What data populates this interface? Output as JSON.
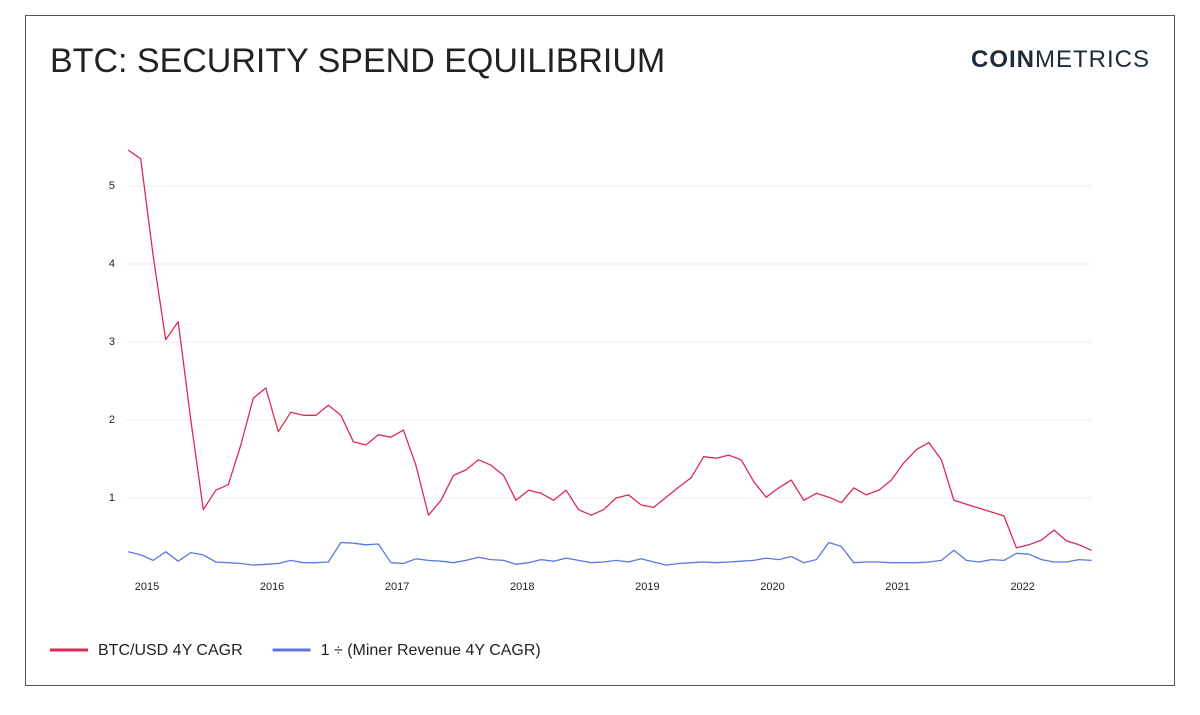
{
  "logo": {
    "bold": "COIN",
    "light": "METRICS"
  },
  "chart_data": {
    "type": "line",
    "title": "BTC: SECURITY SPEND EQUILIBRIUM",
    "x": [
      2014.85,
      2014.95,
      2015.05,
      2015.15,
      2015.25,
      2015.35,
      2015.45,
      2015.55,
      2015.65,
      2015.75,
      2015.85,
      2015.95,
      2016.05,
      2016.15,
      2016.25,
      2016.35,
      2016.45,
      2016.55,
      2016.65,
      2016.75,
      2016.85,
      2016.95,
      2017.05,
      2017.15,
      2017.25,
      2017.35,
      2017.45,
      2017.55,
      2017.65,
      2017.75,
      2017.85,
      2017.95,
      2018.05,
      2018.15,
      2018.25,
      2018.35,
      2018.45,
      2018.55,
      2018.65,
      2018.75,
      2018.85,
      2018.95,
      2019.05,
      2019.15,
      2019.25,
      2019.35,
      2019.45,
      2019.55,
      2019.65,
      2019.75,
      2019.85,
      2019.95,
      2020.05,
      2020.15,
      2020.25,
      2020.35,
      2020.45,
      2020.55,
      2020.65,
      2020.75,
      2020.85,
      2020.95,
      2021.05,
      2021.15,
      2021.25,
      2021.35,
      2021.45,
      2021.55,
      2021.65,
      2021.75,
      2021.85,
      2021.95,
      2022.05,
      2022.15,
      2022.25,
      2022.35,
      2022.45,
      2022.55
    ],
    "series": [
      {
        "name": "BTC/USD 4Y CAGR",
        "color": "#dc2a55",
        "values": [
          5.46,
          5.35,
          4.1,
          3.03,
          3.26,
          2.0,
          0.85,
          1.1,
          1.17,
          1.68,
          2.28,
          2.41,
          1.85,
          2.1,
          2.06,
          2.06,
          2.19,
          2.06,
          1.72,
          1.68,
          1.81,
          1.78,
          1.87,
          1.42,
          0.78,
          0.97,
          1.29,
          1.36,
          1.49,
          1.42,
          1.29,
          0.97,
          1.1,
          1.06,
          0.97,
          1.1,
          0.85,
          0.78,
          0.85,
          1.0,
          1.04,
          0.91,
          0.88,
          1.01,
          1.14,
          1.26,
          1.53,
          1.51,
          1.55,
          1.49,
          1.21,
          1.01,
          1.13,
          1.23,
          0.97,
          1.06,
          1.01,
          0.94,
          1.13,
          1.04,
          1.1,
          1.23,
          1.45,
          1.62,
          1.71,
          1.49,
          0.97,
          0.92,
          0.87,
          0.82,
          0.77,
          0.36,
          0.4,
          0.46,
          0.59,
          0.45,
          0.4,
          0.33
        ]
      },
      {
        "name": "1 ÷ (Miner Revenue 4Y CAGR)",
        "color": "#5a78e0",
        "values": [
          0.31,
          0.27,
          0.2,
          0.31,
          0.19,
          0.3,
          0.27,
          0.18,
          0.17,
          0.16,
          0.14,
          0.15,
          0.16,
          0.2,
          0.17,
          0.17,
          0.18,
          0.43,
          0.42,
          0.4,
          0.41,
          0.17,
          0.16,
          0.22,
          0.2,
          0.19,
          0.17,
          0.2,
          0.24,
          0.21,
          0.2,
          0.15,
          0.17,
          0.21,
          0.19,
          0.23,
          0.2,
          0.17,
          0.18,
          0.2,
          0.18,
          0.22,
          0.18,
          0.14,
          0.16,
          0.17,
          0.18,
          0.17,
          0.18,
          0.19,
          0.2,
          0.23,
          0.21,
          0.25,
          0.17,
          0.21,
          0.43,
          0.38,
          0.17,
          0.18,
          0.18,
          0.17,
          0.17,
          0.17,
          0.18,
          0.2,
          0.33,
          0.2,
          0.18,
          0.21,
          0.2,
          0.29,
          0.28,
          0.21,
          0.18,
          0.18,
          0.21,
          0.2
        ]
      }
    ],
    "xlim": [
      2014.83,
      2022.55
    ],
    "xticks": [
      2015,
      2016,
      2017,
      2018,
      2019,
      2020,
      2021,
      2022
    ],
    "ylim": [
      0,
      5.6
    ],
    "yticks": [
      1,
      2,
      3,
      4,
      5
    ],
    "grid": true
  }
}
